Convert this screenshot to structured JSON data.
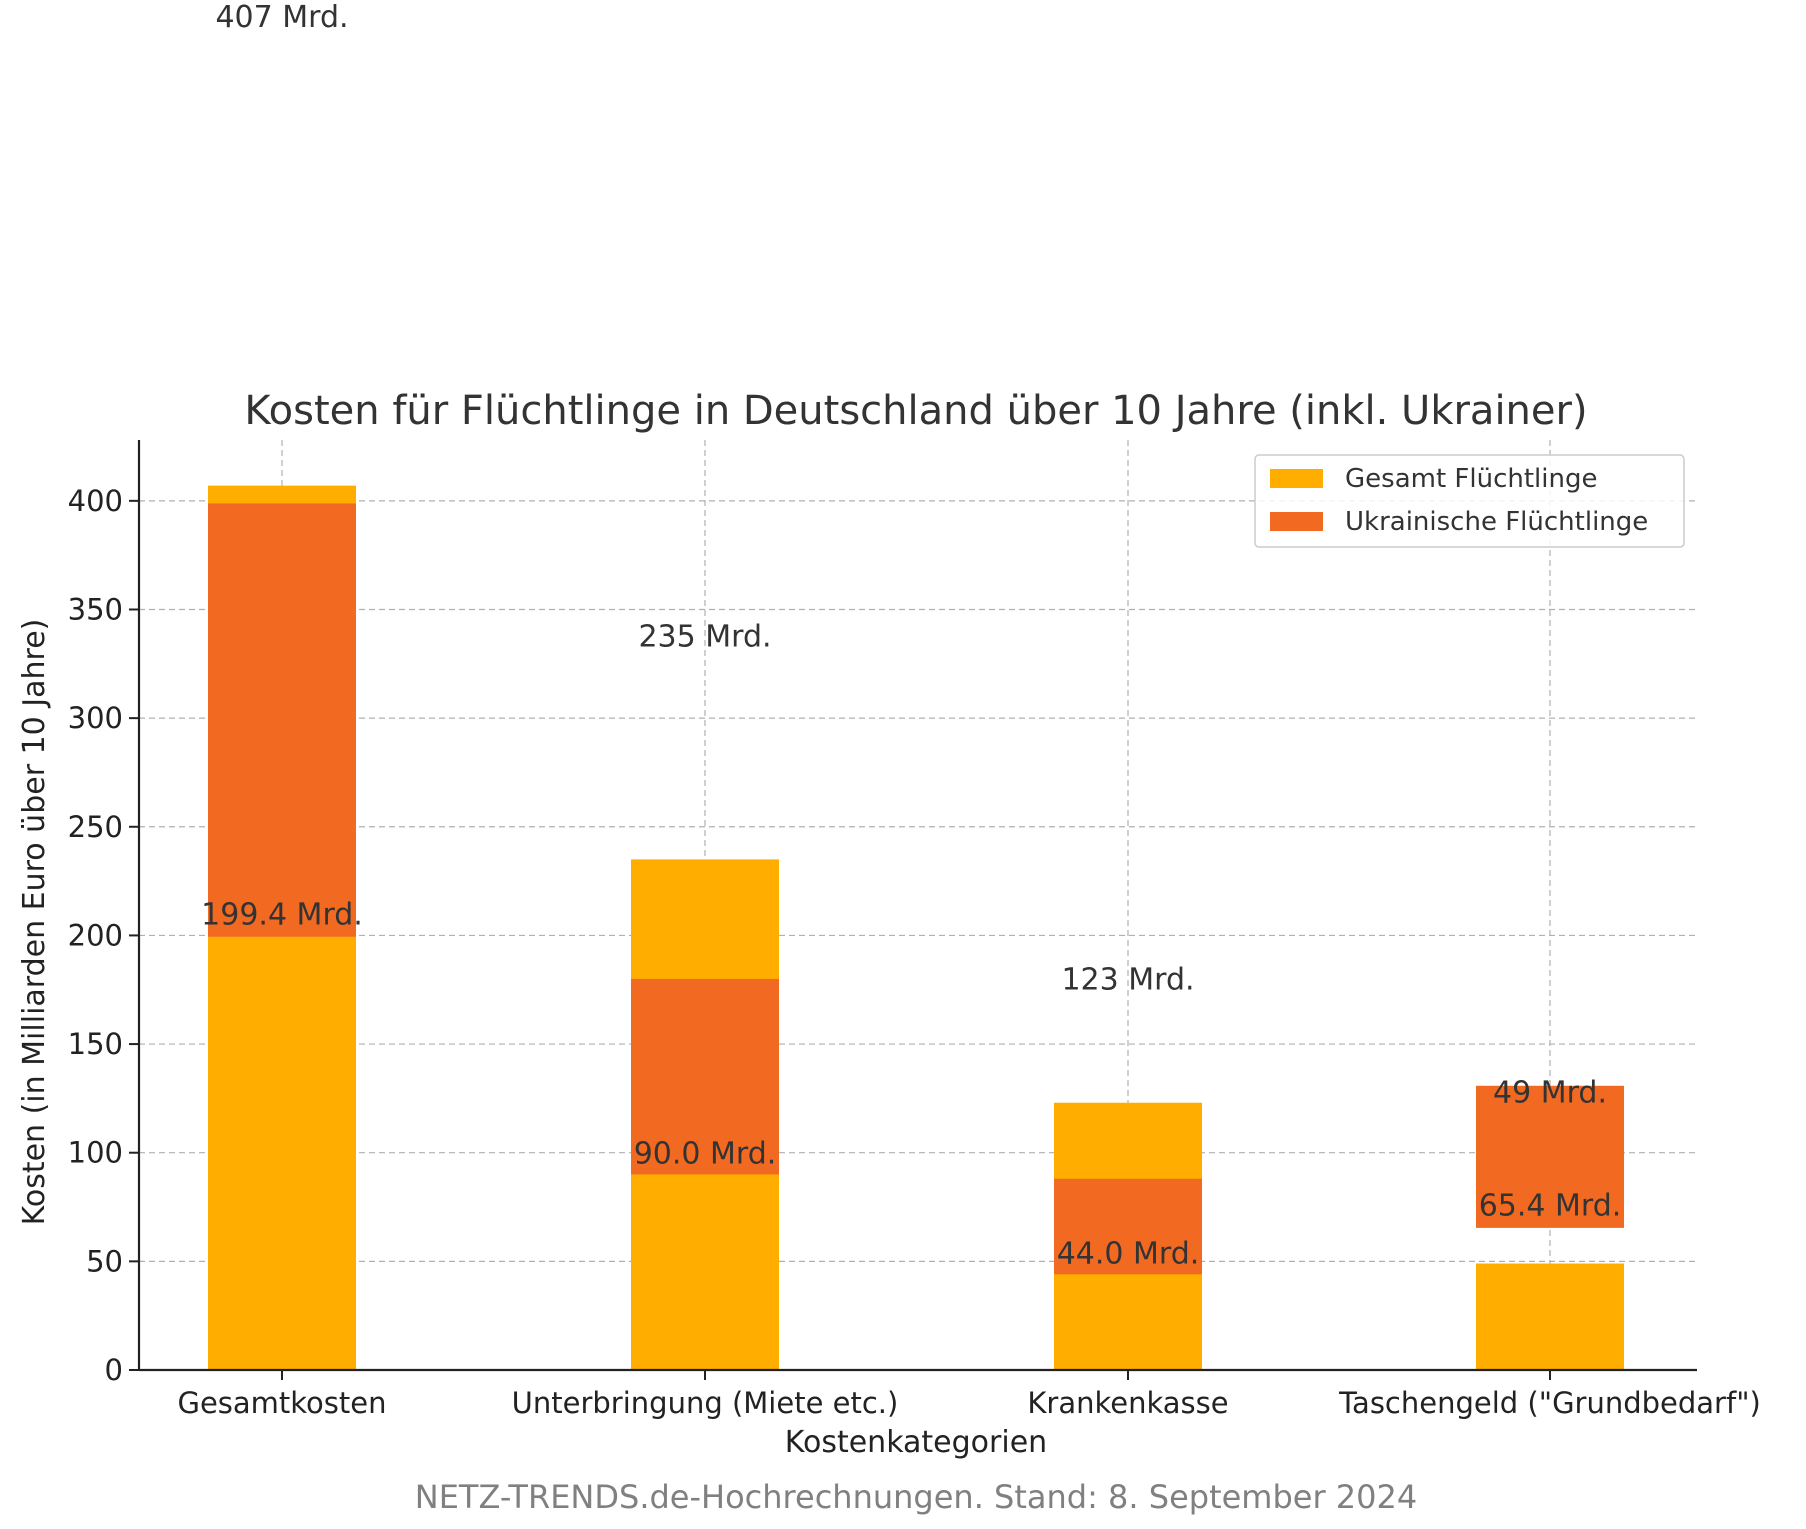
{
  "chart_data": {
    "type": "bar",
    "title": "Kosten für Flüchtlinge in Deutschland über 10 Jahre (inkl. Ukrainer)",
    "xlabel": "Kostenkategorien",
    "ylabel": "Kosten (in Milliarden Euro über 10 Jahre)",
    "footnote": "NETZ-TRENDS.de-Hochrechnungen. Stand: 8. September 2024",
    "categories": [
      "Gesamtkosten",
      "Unterbringung (Miete etc.)",
      "Krankenkasse",
      "Taschengeld (\"Grundbedarf\")"
    ],
    "ylim": [
      0,
      428
    ],
    "yticks": [
      0,
      50,
      100,
      150,
      200,
      250,
      300,
      350,
      400
    ],
    "grid": true,
    "legend_position": "top-right",
    "series": [
      {
        "name": "Gesamt Flüchtlinge",
        "color": "#FFAE00",
        "values": [
          407,
          235,
          123,
          49
        ]
      },
      {
        "name": "Ukrainische Flüchtlinge",
        "color": "#F26A21",
        "bottoms": [
          199.4,
          90.0,
          44.0,
          65.4
        ],
        "values": [
          199.4,
          90.0,
          44.0,
          65.4
        ]
      }
    ],
    "annotations": [
      {
        "text": "407 Mrd.",
        "category": 0,
        "y": 618
      },
      {
        "text": "235 Mrd.",
        "category": 1,
        "y": 333
      },
      {
        "text": "123 Mrd.",
        "category": 2,
        "y": 175
      },
      {
        "text": "49 Mrd.",
        "category": 3,
        "y": 123
      },
      {
        "text": "199.4 Mrd.",
        "category": 0,
        "y": 205
      },
      {
        "text": "90.0 Mrd.",
        "category": 1,
        "y": 95
      },
      {
        "text": "44.0 Mrd.",
        "category": 2,
        "y": 49
      },
      {
        "text": "65.4 Mrd.",
        "category": 3,
        "y": 71
      }
    ]
  }
}
